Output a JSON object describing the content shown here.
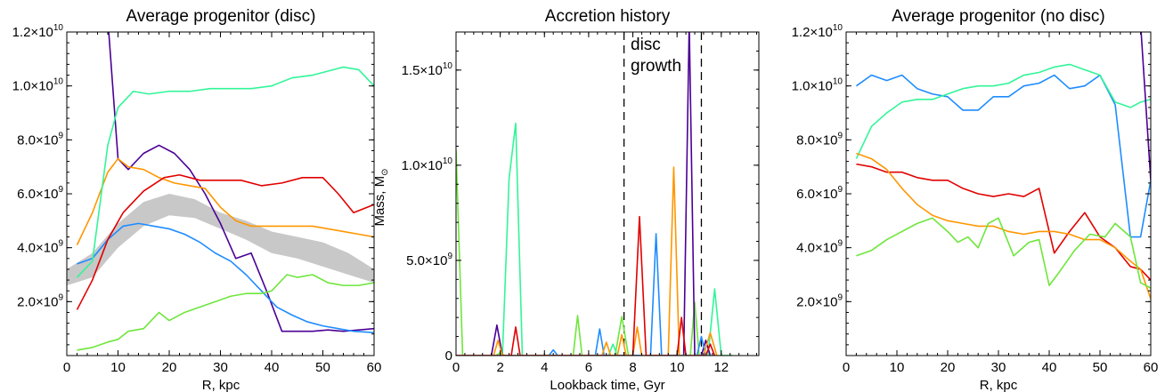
{
  "chart_data": [
    {
      "type": "line",
      "title": "Average progenitor (disc)",
      "xlabel": "R, kpc",
      "ylabel": "",
      "xlim": [
        0,
        60
      ],
      "ylim": [
        0,
        12000000000.0
      ],
      "xticks": [
        "0",
        "10",
        "20",
        "30",
        "40",
        "50",
        "60"
      ],
      "yticks": [
        {
          "mant": "2.0×10",
          "exp": "9"
        },
        {
          "mant": "4.0×10",
          "exp": "9"
        },
        {
          "mant": "6.0×10",
          "exp": "9"
        },
        {
          "mant": "8.0×10",
          "exp": "9"
        },
        {
          "mant": "1.0×10",
          "exp": "10"
        },
        {
          "mant": "1.2×10",
          "exp": "10"
        }
      ],
      "band": {
        "color": "#c8c8c8",
        "x": [
          0,
          5,
          10,
          15,
          20,
          25,
          30,
          35,
          40,
          45,
          50,
          55,
          60
        ],
        "upper": [
          3200000000.0,
          3800000000.0,
          4900000000.0,
          5700000000.0,
          6000000000.0,
          5800000000.0,
          5300000000.0,
          5000000000.0,
          4600000000.0,
          4400000000.0,
          4200000000.0,
          3800000000.0,
          3200000000.0
        ],
        "lower": [
          2600000000.0,
          2900000000.0,
          4000000000.0,
          4800000000.0,
          5200000000.0,
          5100000000.0,
          4700000000.0,
          4300000000.0,
          3800000000.0,
          3600000000.0,
          3300000000.0,
          3000000000.0,
          2700000000.0
        ]
      },
      "series": [
        {
          "color": "#4b0096",
          "x": [
            8,
            10,
            12,
            15,
            18,
            21,
            24,
            27,
            30,
            33,
            36,
            39,
            42,
            45,
            48,
            51,
            54,
            57,
            60
          ],
          "values": [
            12500000000.0,
            7300000000.0,
            6900000000.0,
            7500000000.0,
            7800000000.0,
            7500000000.0,
            6900000000.0,
            6000000000.0,
            4900000000.0,
            3600000000.0,
            3800000000.0,
            2400000000.0,
            900000000.0,
            900000000.0,
            900000000.0,
            950000000.0,
            900000000.0,
            950000000.0,
            1000000000.0
          ]
        },
        {
          "color": "#1e8cff",
          "x": [
            2,
            5,
            8,
            11,
            14,
            17,
            20,
            23,
            26,
            29,
            32,
            35,
            38,
            41,
            44,
            47,
            50,
            53,
            56,
            60
          ],
          "values": [
            3400000000.0,
            3600000000.0,
            4300000000.0,
            4800000000.0,
            4900000000.0,
            4800000000.0,
            4700000000.0,
            4500000000.0,
            4200000000.0,
            3800000000.0,
            3500000000.0,
            3000000000.0,
            2400000000.0,
            1800000000.0,
            1500000000.0,
            1250000000.0,
            1100000000.0,
            1000000000.0,
            900000000.0,
            850000000.0
          ]
        },
        {
          "color": "#ff9600",
          "x": [
            2,
            5,
            8,
            10,
            12,
            15,
            18,
            21,
            24,
            27,
            30,
            33,
            36,
            39,
            42,
            45,
            48,
            51,
            54,
            57,
            60
          ],
          "values": [
            4100000000.0,
            5300000000.0,
            6800000000.0,
            7300000000.0,
            7000000000.0,
            6900000000.0,
            6600000000.0,
            6400000000.0,
            6300000000.0,
            6200000000.0,
            5500000000.0,
            5000000000.0,
            4800000000.0,
            4800000000.0,
            4800000000.0,
            4800000000.0,
            4800000000.0,
            4700000000.0,
            4600000000.0,
            4500000000.0,
            4400000000.0
          ]
        },
        {
          "color": "#e10000",
          "x": [
            2,
            5,
            8,
            11,
            15,
            19,
            22,
            26,
            30,
            34,
            38,
            42,
            46,
            50,
            53,
            56,
            60
          ],
          "values": [
            1700000000.0,
            2800000000.0,
            4300000000.0,
            5300000000.0,
            6100000000.0,
            6600000000.0,
            6700000000.0,
            6500000000.0,
            6500000000.0,
            6500000000.0,
            6300000000.0,
            6400000000.0,
            6600000000.0,
            6600000000.0,
            6000000000.0,
            5300000000.0,
            5600000000.0
          ]
        },
        {
          "color": "#32f598",
          "x": [
            2,
            5,
            8,
            10,
            13,
            16,
            20,
            24,
            28,
            32,
            36,
            40,
            44,
            48,
            52,
            54,
            57,
            60
          ],
          "values": [
            2900000000.0,
            3500000000.0,
            7800000000.0,
            9200000000.0,
            9800000000.0,
            9700000000.0,
            9800000000.0,
            9800000000.0,
            9900000000.0,
            9900000000.0,
            9900000000.0,
            10000000000.0,
            10300000000.0,
            10400000000.0,
            10600000000.0,
            10700000000.0,
            10600000000.0,
            10000000000.0
          ]
        },
        {
          "color": "#6ee63c",
          "x": [
            2,
            5,
            8,
            10,
            12,
            15,
            18,
            20,
            23,
            26,
            29,
            32,
            35,
            38,
            40,
            43,
            45,
            48,
            51,
            54,
            57,
            60
          ],
          "values": [
            200000000.0,
            300000000.0,
            500000000.0,
            600000000.0,
            900000000.0,
            1000000000.0,
            1600000000.0,
            1300000000.0,
            1600000000.0,
            1800000000.0,
            2000000000.0,
            2200000000.0,
            2300000000.0,
            2300000000.0,
            2400000000.0,
            3000000000.0,
            2900000000.0,
            3000000000.0,
            2700000000.0,
            2600000000.0,
            2600000000.0,
            2700000000.0
          ]
        }
      ]
    },
    {
      "type": "line",
      "title": "Accretion history",
      "xlabel": "Lookback time, Gyr",
      "ylabel": "Mass, M",
      "ylabel_sub": "⊙",
      "xlim": [
        0,
        13.7
      ],
      "ylim": [
        0,
        17000000000.0
      ],
      "xticks": [
        "0",
        "2",
        "4",
        "6",
        "8",
        "10",
        "12"
      ],
      "yticks": [
        {
          "mant": "0",
          "exp": ""
        },
        {
          "mant": "5.0×10",
          "exp": "9"
        },
        {
          "mant": "1.0×10",
          "exp": "10"
        },
        {
          "mant": "1.5×10",
          "exp": "10"
        }
      ],
      "annotations": {
        "line1": "disc",
        "line2": "growth"
      },
      "vlines": [
        7.6,
        11.1
      ],
      "series": [
        {
          "color": "#6ee63c",
          "x": [
            0.0,
            0.3,
            0.6,
            1.8,
            2.0,
            2.2,
            4.0,
            5.3,
            5.5,
            5.7,
            7.2,
            7.5,
            7.8,
            10.6,
            10.8,
            11.0,
            12.5
          ],
          "values": [
            10800000000.0,
            0,
            0,
            0,
            150000000.0,
            0,
            0,
            0,
            2100000000.0,
            0,
            0,
            2050000000.0,
            0,
            0,
            2800000000.0,
            0,
            0
          ]
        },
        {
          "color": "#32f598",
          "x": [
            0.0,
            2.1,
            2.4,
            2.7,
            3.0,
            4.0,
            6.9,
            7.1,
            7.3,
            11.4,
            11.7,
            12.0,
            12.5
          ],
          "values": [
            0,
            0,
            9300000000.0,
            12200000000.0,
            0,
            0,
            0,
            600000000.0,
            0,
            0,
            3500000000.0,
            0,
            0
          ]
        },
        {
          "color": "#4b0096",
          "x": [
            0.0,
            1.6,
            1.85,
            2.1,
            10.3,
            10.55,
            10.8,
            11.1,
            11.3,
            11.5
          ],
          "values": [
            0,
            0,
            1600000000.0,
            0,
            0,
            17500000000.0,
            0,
            0,
            800000000.0,
            0
          ]
        },
        {
          "color": "#1e8cff",
          "x": [
            0.0,
            4.2,
            4.4,
            4.6,
            6.3,
            6.5,
            6.7,
            8.8,
            9.05,
            9.3,
            10.9,
            11.1,
            11.3
          ],
          "values": [
            0,
            0,
            300000000.0,
            0,
            0,
            1400000000.0,
            0,
            0,
            6400000000.0,
            0,
            0,
            1000000000.0,
            0
          ]
        },
        {
          "color": "#ff9600",
          "x": [
            0.0,
            1.7,
            1.9,
            2.1,
            6.6,
            6.8,
            7.0,
            7.3,
            7.5,
            7.7,
            8.0,
            8.2,
            8.4,
            9.6,
            9.85,
            10.1,
            11.2,
            11.5,
            11.8
          ],
          "values": [
            0,
            0,
            800000000.0,
            0,
            0,
            700000000.0,
            0,
            0,
            1100000000.0,
            0,
            0,
            1500000000.0,
            0,
            0,
            9900000000.0,
            0,
            0,
            1200000000.0,
            0
          ]
        },
        {
          "color": "#e10000",
          "x": [
            0.0,
            2.5,
            2.7,
            2.9,
            8.0,
            8.3,
            8.6,
            10.0,
            10.2,
            10.4,
            11.3,
            11.5,
            11.7
          ],
          "values": [
            0,
            0,
            1500000000.0,
            0,
            0,
            7300000000.0,
            0,
            0,
            2000000000.0,
            0,
            0,
            600000000.0,
            0
          ]
        }
      ]
    },
    {
      "type": "line",
      "title": "Average progenitor (no disc)",
      "xlabel": "R, kpc",
      "ylabel": "",
      "xlim": [
        0,
        60
      ],
      "ylim": [
        0,
        12000000000.0
      ],
      "xticks": [
        "0",
        "10",
        "20",
        "30",
        "40",
        "50",
        "60"
      ],
      "yticks": [
        {
          "mant": "2.0×10",
          "exp": "9"
        },
        {
          "mant": "4.0×10",
          "exp": "9"
        },
        {
          "mant": "6.0×10",
          "exp": "9"
        },
        {
          "mant": "8.0×10",
          "exp": "9"
        },
        {
          "mant": "1.0×10",
          "exp": "10"
        },
        {
          "mant": "1.2×10",
          "exp": "10"
        }
      ],
      "series": [
        {
          "color": "#1e8cff",
          "x": [
            2,
            5,
            8,
            11,
            14,
            17,
            20,
            23,
            26,
            29,
            32,
            35,
            38,
            41,
            44,
            47,
            50,
            53,
            56,
            58,
            60
          ],
          "values": [
            10000000000.0,
            10400000000.0,
            10200000000.0,
            10400000000.0,
            9900000000.0,
            9700000000.0,
            9600000000.0,
            9100000000.0,
            9100000000.0,
            9600000000.0,
            9600000000.0,
            10000000000.0,
            10100000000.0,
            10400000000.0,
            9900000000.0,
            10000000000.0,
            10400000000.0,
            9300000000.0,
            4400000000.0,
            4400000000.0,
            6500000000.0
          ]
        },
        {
          "color": "#32f598",
          "x": [
            2,
            5,
            8,
            11,
            14,
            17,
            20,
            23,
            26,
            29,
            32,
            35,
            38,
            41,
            44,
            47,
            50,
            53,
            56,
            58,
            60
          ],
          "values": [
            7300000000.0,
            8500000000.0,
            9000000000.0,
            9400000000.0,
            9500000000.0,
            9500000000.0,
            9700000000.0,
            9900000000.0,
            10000000000.0,
            10000000000.0,
            10100000000.0,
            10400000000.0,
            10500000000.0,
            10700000000.0,
            10800000000.0,
            10600000000.0,
            10400000000.0,
            9400000000.0,
            9200000000.0,
            9400000000.0,
            9500000000.0
          ]
        },
        {
          "color": "#4b0096",
          "x": [
            58,
            60
          ],
          "values": [
            12300000000.0,
            6500000000.0
          ]
        },
        {
          "color": "#e10000",
          "x": [
            2,
            5,
            8,
            11,
            14,
            17,
            20,
            23,
            26,
            29,
            32,
            35,
            38,
            41,
            44,
            47,
            50,
            53,
            56,
            58,
            60
          ],
          "values": [
            7100000000.0,
            7000000000.0,
            6800000000.0,
            6800000000.0,
            6600000000.0,
            6500000000.0,
            6500000000.0,
            6200000000.0,
            6000000000.0,
            5900000000.0,
            6000000000.0,
            5900000000.0,
            6200000000.0,
            3800000000.0,
            4600000000.0,
            5300000000.0,
            4400000000.0,
            4000000000.0,
            3300000000.0,
            3200000000.0,
            2800000000.0
          ]
        },
        {
          "color": "#ff9600",
          "x": [
            2,
            5,
            8,
            11,
            14,
            17,
            20,
            23,
            26,
            29,
            32,
            35,
            38,
            41,
            44,
            47,
            50,
            53,
            56,
            58,
            60
          ],
          "values": [
            7500000000.0,
            7300000000.0,
            6900000000.0,
            6200000000.0,
            5600000000.0,
            5200000000.0,
            5000000000.0,
            4900000000.0,
            4800000000.0,
            4800000000.0,
            4600000000.0,
            4500000000.0,
            4600000000.0,
            4600000000.0,
            4500000000.0,
            4300000000.0,
            4300000000.0,
            4000000000.0,
            3500000000.0,
            3200000000.0,
            2100000000.0
          ]
        },
        {
          "color": "#6ee63c",
          "x": [
            2,
            5,
            8,
            11,
            14,
            17,
            20,
            22,
            24,
            26,
            28,
            30,
            33,
            36,
            38,
            40,
            42,
            45,
            48,
            51,
            53,
            56,
            58,
            60
          ],
          "values": [
            3700000000.0,
            3900000000.0,
            4300000000.0,
            4600000000.0,
            4900000000.0,
            5100000000.0,
            4600000000.0,
            4200000000.0,
            4400000000.0,
            4000000000.0,
            4900000000.0,
            5100000000.0,
            3700000000.0,
            4200000000.0,
            4300000000.0,
            2600000000.0,
            3100000000.0,
            3900000000.0,
            4500000000.0,
            4400000000.0,
            4900000000.0,
            4400000000.0,
            2700000000.0,
            2500000000.0
          ]
        }
      ]
    }
  ]
}
